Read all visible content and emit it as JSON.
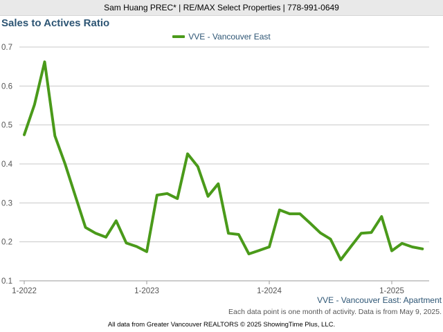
{
  "header": {
    "banner": "Sam Huang PREC* | RE/MAX Select Properties | 778-991-0649"
  },
  "chart_data": {
    "type": "line",
    "title": "Sales to Actives Ratio",
    "xlabel": "",
    "ylabel": "",
    "legend_position": "top-center",
    "grid": true,
    "ylim": [
      0.1,
      0.7
    ],
    "yticks": [
      "0.1",
      "0.2",
      "0.3",
      "0.4",
      "0.5",
      "0.6",
      "0.7"
    ],
    "xticks": [
      "1-2022",
      "1-2023",
      "1-2024",
      "1-2025"
    ],
    "x": [
      "2022-01",
      "2022-02",
      "2022-03",
      "2022-04",
      "2022-05",
      "2022-06",
      "2022-07",
      "2022-08",
      "2022-09",
      "2022-10",
      "2022-11",
      "2022-12",
      "2023-01",
      "2023-02",
      "2023-03",
      "2023-04",
      "2023-05",
      "2023-06",
      "2023-07",
      "2023-08",
      "2023-09",
      "2023-10",
      "2023-11",
      "2023-12",
      "2024-01",
      "2024-02",
      "2024-03",
      "2024-04",
      "2024-05",
      "2024-06",
      "2024-07",
      "2024-08",
      "2024-09",
      "2024-10",
      "2024-11",
      "2024-12",
      "2025-01",
      "2025-02",
      "2025-03",
      "2025-04"
    ],
    "series": [
      {
        "name": "VVE - Vancouver East",
        "color": "#4a9a1a",
        "values": [
          0.475,
          0.552,
          0.662,
          0.472,
          0.4,
          0.318,
          0.237,
          0.222,
          0.212,
          0.254,
          0.197,
          0.188,
          0.175,
          0.32,
          0.324,
          0.311,
          0.426,
          0.393,
          0.317,
          0.349,
          0.222,
          0.219,
          0.169,
          0.178,
          0.187,
          0.282,
          0.272,
          0.272,
          0.248,
          0.223,
          0.207,
          0.154,
          0.188,
          0.222,
          0.224,
          0.265,
          0.177,
          0.196,
          0.187,
          0.182
        ]
      }
    ],
    "series_caption": "VVE - Vancouver East: Apartment"
  },
  "notes": {
    "data_note": "Each data point is one month of activity. Data is from May 9, 2025."
  },
  "footer": {
    "text": "All data from Greater Vancouver REALTORS © 2025 ShowingTime Plus, LLC."
  }
}
